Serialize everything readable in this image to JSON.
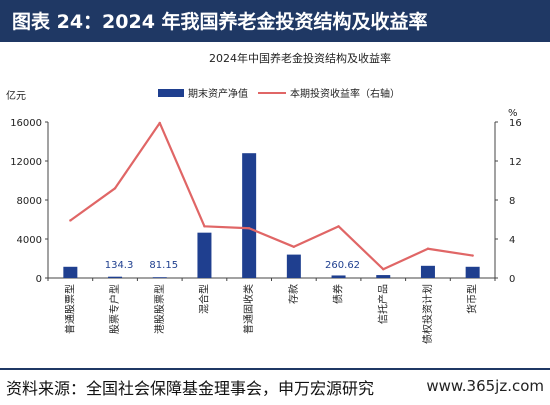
{
  "header": {
    "title": "图表 24：2024 年我国养老金投资结构及收益率"
  },
  "footer": {
    "source": "资料来源：全国社会保障基金理事会，申万宏源研究",
    "watermark": "www.365jz.com"
  },
  "colors": {
    "header_bg": "#1f3864",
    "bar": "#1f3f8f",
    "line": "#e06666"
  },
  "chart_data": {
    "type": "bar+line",
    "title": "2024年中国养老金投资结构及收益率",
    "categories": [
      "普通股票型",
      "股票专户型",
      "港股股票型",
      "混合型",
      "普通固收类",
      "存款",
      "债券",
      "信托产品",
      "债权投资计划",
      "货币型"
    ],
    "series": [
      {
        "name": "期末资产净值",
        "type": "bar",
        "axis": "left",
        "values": [
          1150,
          134.3,
          81.15,
          4650,
          12800,
          2400,
          260.62,
          300,
          1250,
          1150
        ]
      },
      {
        "name": "本期投资收益率（右轴）",
        "type": "line",
        "axis": "right",
        "values": [
          5.9,
          9.2,
          15.9,
          5.3,
          5.1,
          3.2,
          5.3,
          0.9,
          3.0,
          2.3
        ]
      }
    ],
    "bar_labels": [
      {
        "index": 1,
        "text": "134.3"
      },
      {
        "index": 2,
        "text": "81.15"
      },
      {
        "index": 6,
        "text": "260.62"
      }
    ],
    "left_axis": {
      "unit": "亿元",
      "min": 0,
      "max": 16000,
      "ticks": [
        "0",
        "4000",
        "8000",
        "12000",
        "16000"
      ]
    },
    "right_axis": {
      "unit": "%",
      "min": 0,
      "max": 16,
      "ticks": [
        "0",
        "4",
        "8",
        "12",
        "16"
      ]
    },
    "legend_position": "top",
    "grid": false
  }
}
